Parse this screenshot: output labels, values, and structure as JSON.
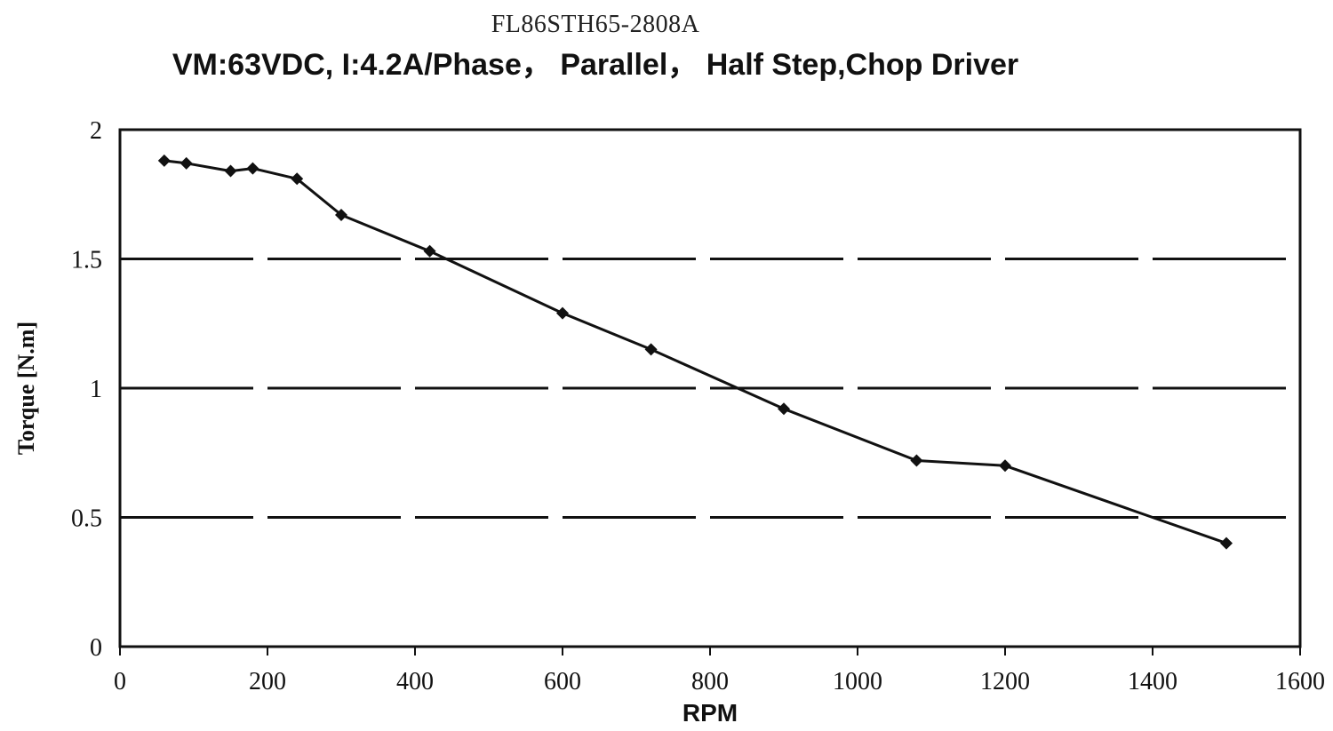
{
  "chart_data": {
    "type": "line",
    "title": "FL86STH65-2808A",
    "subtitle": "VM:63VDC, I:4.2A/Phase， Parallel， Half Step,Chop Driver",
    "xlabel": "RPM",
    "ylabel": "Torque [N.m]",
    "xlim": [
      0,
      1600
    ],
    "ylim": [
      0,
      2
    ],
    "xticks": [
      "0",
      "200",
      "400",
      "600",
      "800",
      "1000",
      "1200",
      "1400",
      "1600"
    ],
    "yticks": [
      "0",
      "0.5",
      "1",
      "1.5",
      "2"
    ],
    "grid": "horizontal",
    "legend": "none",
    "line_color": "#111111",
    "series": [
      {
        "x": [
          60,
          90,
          150,
          180,
          240,
          300,
          420,
          600,
          720,
          900,
          1080,
          1200,
          1500
        ],
        "y": [
          1.88,
          1.87,
          1.84,
          1.85,
          1.81,
          1.67,
          1.53,
          1.29,
          1.15,
          0.92,
          0.72,
          0.7,
          0.4
        ]
      }
    ]
  }
}
